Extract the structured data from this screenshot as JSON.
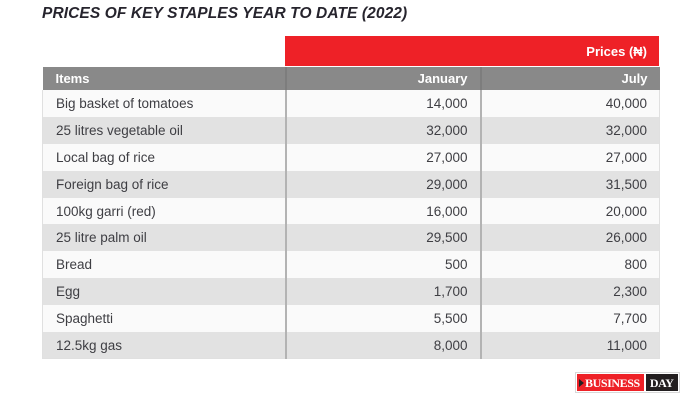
{
  "page": {
    "title": "PRICES OF KEY STAPLES YEAR TO DATE (2022)"
  },
  "colors": {
    "accent_red": "#ee2127",
    "header_gray": "#898989",
    "row_light": "#fafafa",
    "row_dark": "#e2e2e2",
    "logo_black": "#231f20",
    "text_dark": "#3e3e43"
  },
  "price_band": {
    "label": "Prices (₦)"
  },
  "table": {
    "columns": [
      "Items",
      "January",
      "July"
    ],
    "rows": [
      {
        "item": "Big basket of tomatoes",
        "january": "14,000",
        "july": "40,000"
      },
      {
        "item": "25 litres vegetable oil",
        "january": "32,000",
        "july": "32,000"
      },
      {
        "item": "Local bag of rice",
        "january": "27,000",
        "july": "27,000"
      },
      {
        "item": "Foreign bag of rice",
        "january": "29,000",
        "july": "31,500"
      },
      {
        "item": "100kg garri (red)",
        "january": "16,000",
        "july": "20,000"
      },
      {
        "item": "25 litre palm oil",
        "january": "29,500",
        "july": "26,000"
      },
      {
        "item": "Bread",
        "january": "500",
        "july": "800"
      },
      {
        "item": "Egg",
        "january": "1,700",
        "july": "2,300"
      },
      {
        "item": "Spaghetti",
        "january": "5,500",
        "july": "7,700"
      },
      {
        "item": "12.5kg gas",
        "january": "8,000",
        "july": "11,000"
      }
    ]
  },
  "chart_data": {
    "type": "table",
    "title": "PRICES OF KEY STAPLES YEAR TO DATE (2022)",
    "unit": "₦",
    "columns": [
      "Items",
      "January",
      "July"
    ],
    "rows": [
      [
        "Big basket of tomatoes",
        14000,
        40000
      ],
      [
        "25 litres vegetable oil",
        32000,
        32000
      ],
      [
        "Local bag of rice",
        27000,
        27000
      ],
      [
        "Foreign bag of rice",
        29000,
        31500
      ],
      [
        "100kg garri (red)",
        16000,
        20000
      ],
      [
        "25 litre palm oil",
        29500,
        26000
      ],
      [
        "Bread",
        500,
        800
      ],
      [
        "Egg",
        1700,
        2300
      ],
      [
        "Spaghetti",
        5500,
        7700
      ],
      [
        "12.5kg gas",
        8000,
        11000
      ]
    ]
  },
  "footer": {
    "logo_business": "BUSINESS",
    "logo_day": "DAY"
  }
}
